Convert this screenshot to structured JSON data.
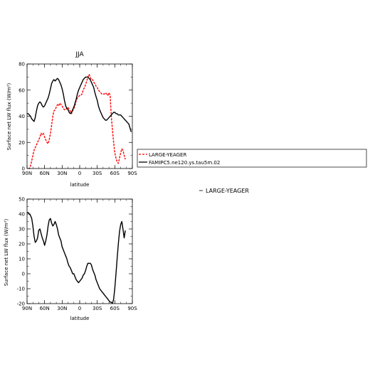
{
  "chart_data": [
    {
      "type": "line",
      "title": "JJA",
      "xlabel": "latitude",
      "ylabel": "Surface net LW flux (W/m²)",
      "xlim": [
        90,
        -90
      ],
      "ylim": [
        0,
        80
      ],
      "x_ticks": [
        90,
        60,
        30,
        0,
        -30,
        -60,
        -90
      ],
      "x_tick_labels": [
        "90N",
        "60N",
        "30N",
        "0",
        "30S",
        "60S",
        "90S"
      ],
      "y_ticks": [
        0,
        20,
        40,
        60,
        80
      ],
      "y_tick_labels": [
        "0",
        "20",
        "40",
        "60",
        "80"
      ],
      "legend": {
        "placement": "right",
        "entries": [
          "LARGE-YEAGER",
          "FAMIPC5.ne120.ys.tau5m.02"
        ]
      },
      "series": [
        {
          "name": "LARGE-YEAGER",
          "color": "#ff0000",
          "dash": "dashed",
          "x": [
            88,
            86,
            84,
            82,
            80,
            78,
            76,
            74,
            72,
            70,
            68,
            66,
            64,
            62,
            60,
            58,
            56,
            54,
            52,
            50,
            48,
            46,
            44,
            42,
            40,
            38,
            36,
            34,
            32,
            30,
            28,
            26,
            24,
            22,
            20,
            18,
            16,
            14,
            12,
            10,
            8,
            6,
            4,
            2,
            0,
            -2,
            -4,
            -6,
            -8,
            -10,
            -12,
            -14,
            -16,
            -18,
            -20,
            -22,
            -24,
            -26,
            -28,
            -30,
            -32,
            -34,
            -36,
            -38,
            -40,
            -42,
            -44,
            -46,
            -48,
            -50,
            -52,
            -54,
            -56,
            -58,
            -60,
            -62,
            -64,
            -66,
            -68,
            -70,
            -72,
            -74,
            -76,
            -78
          ],
          "y": [
            0,
            0,
            2,
            6,
            10,
            14,
            16,
            18,
            20,
            22,
            24,
            27,
            26,
            27,
            24,
            22,
            20,
            19,
            22,
            27,
            33,
            40,
            44,
            45,
            47,
            49,
            48,
            50,
            49,
            48,
            46,
            45,
            45,
            46,
            47,
            45,
            44,
            42,
            44,
            46,
            48,
            52,
            54,
            55,
            56,
            56,
            57,
            60,
            62,
            64,
            67,
            70,
            72,
            70,
            68,
            68,
            66,
            65,
            63,
            62,
            60,
            59,
            58,
            57,
            57,
            57,
            58,
            57,
            56,
            58,
            56,
            40,
            30,
            20,
            12,
            8,
            5,
            4,
            8,
            12,
            15,
            14,
            10,
            7
          ]
        },
        {
          "name": "FAMIPC5.ne120.ys.tau5m.02",
          "color": "#000000",
          "dash": "solid",
          "x": [
            90,
            88,
            86,
            84,
            82,
            80,
            78,
            76,
            74,
            72,
            70,
            68,
            66,
            64,
            62,
            60,
            58,
            56,
            54,
            52,
            50,
            48,
            46,
            44,
            42,
            40,
            38,
            36,
            34,
            32,
            30,
            28,
            26,
            24,
            22,
            20,
            18,
            16,
            14,
            12,
            10,
            8,
            6,
            4,
            2,
            0,
            -2,
            -4,
            -6,
            -8,
            -10,
            -12,
            -14,
            -16,
            -18,
            -20,
            -22,
            -24,
            -26,
            -28,
            -30,
            -32,
            -34,
            -36,
            -38,
            -40,
            -42,
            -44,
            -46,
            -48,
            -50,
            -52,
            -54,
            -56,
            -58,
            -60,
            -62,
            -64,
            -66,
            -68,
            -70,
            -72,
            -74,
            -76,
            -78,
            -80,
            -82,
            -84,
            -86,
            -88
          ],
          "y": [
            42,
            42,
            41,
            40,
            38,
            37,
            36,
            39,
            44,
            48,
            50,
            51,
            50,
            48,
            47,
            48,
            50,
            52,
            54,
            57,
            61,
            65,
            67,
            68,
            67,
            68,
            69,
            68,
            66,
            64,
            61,
            57,
            52,
            48,
            46,
            45,
            43,
            42,
            43,
            45,
            47,
            50,
            53,
            57,
            60,
            62,
            64,
            66,
            68,
            69,
            70,
            70,
            70,
            69,
            68,
            66,
            64,
            62,
            58,
            55,
            52,
            48,
            45,
            43,
            41,
            39,
            38,
            37,
            37,
            38,
            39,
            40,
            41,
            42,
            43,
            43,
            42,
            42,
            41,
            41,
            41,
            40,
            39,
            38,
            37,
            36,
            35,
            34,
            31,
            28
          ]
        }
      ]
    },
    {
      "type": "line",
      "title": "",
      "xlabel": "latitude",
      "ylabel": "Surface net LW flux (W/m²)",
      "xlim": [
        90,
        -90
      ],
      "ylim": [
        -20,
        50
      ],
      "x_ticks": [
        90,
        60,
        30,
        0,
        -30,
        -60,
        -90
      ],
      "x_tick_labels": [
        "90N",
        "60N",
        "30N",
        "0",
        "30S",
        "60S",
        "90S"
      ],
      "y_ticks": [
        -20,
        -10,
        0,
        10,
        20,
        30,
        40,
        50
      ],
      "y_tick_labels": [
        "-20",
        "-10",
        "0",
        "10",
        "20",
        "30",
        "40",
        "50"
      ],
      "legend": {
        "placement": "right",
        "entries": [
          "LARGE-YEAGER"
        ]
      },
      "series": [
        {
          "color": "#000000",
          "dash": "solid",
          "x": [
            90,
            88,
            86,
            84,
            82,
            80,
            78,
            76,
            74,
            72,
            70,
            68,
            66,
            64,
            62,
            60,
            58,
            56,
            54,
            52,
            50,
            48,
            46,
            44,
            42,
            40,
            38,
            36,
            34,
            32,
            30,
            28,
            26,
            24,
            22,
            20,
            18,
            16,
            14,
            12,
            10,
            8,
            6,
            4,
            2,
            0,
            -2,
            -4,
            -6,
            -8,
            -10,
            -12,
            -14,
            -16,
            -18,
            -20,
            -22,
            -24,
            -26,
            -28,
            -30,
            -32,
            -34,
            -36,
            -38,
            -40,
            -42,
            -44,
            -46,
            -48,
            -50,
            -52,
            -54,
            -56,
            -58,
            -60,
            -62,
            -64,
            -66,
            -68,
            -70,
            -72,
            -74,
            -76,
            -78
          ],
          "y": [
            41,
            41,
            40,
            39,
            37,
            32,
            25,
            21,
            22,
            24,
            29,
            30,
            27,
            24,
            22,
            19,
            22,
            26,
            32,
            36,
            37,
            34,
            32,
            33,
            35,
            33,
            30,
            26,
            24,
            22,
            18,
            16,
            14,
            12,
            10,
            7,
            5,
            4,
            2,
            0,
            0,
            -2,
            -4,
            -5,
            -6,
            -5,
            -4,
            -3,
            -1,
            0,
            2,
            5,
            7,
            7,
            7,
            6,
            3,
            1,
            -1,
            -4,
            -6,
            -8,
            -10,
            -11,
            -12,
            -13,
            -14,
            -15,
            -16,
            -17,
            -18,
            -19,
            -19,
            -20,
            -17,
            -10,
            0,
            10,
            20,
            28,
            33,
            35,
            30,
            24,
            29
          ]
        }
      ]
    }
  ]
}
